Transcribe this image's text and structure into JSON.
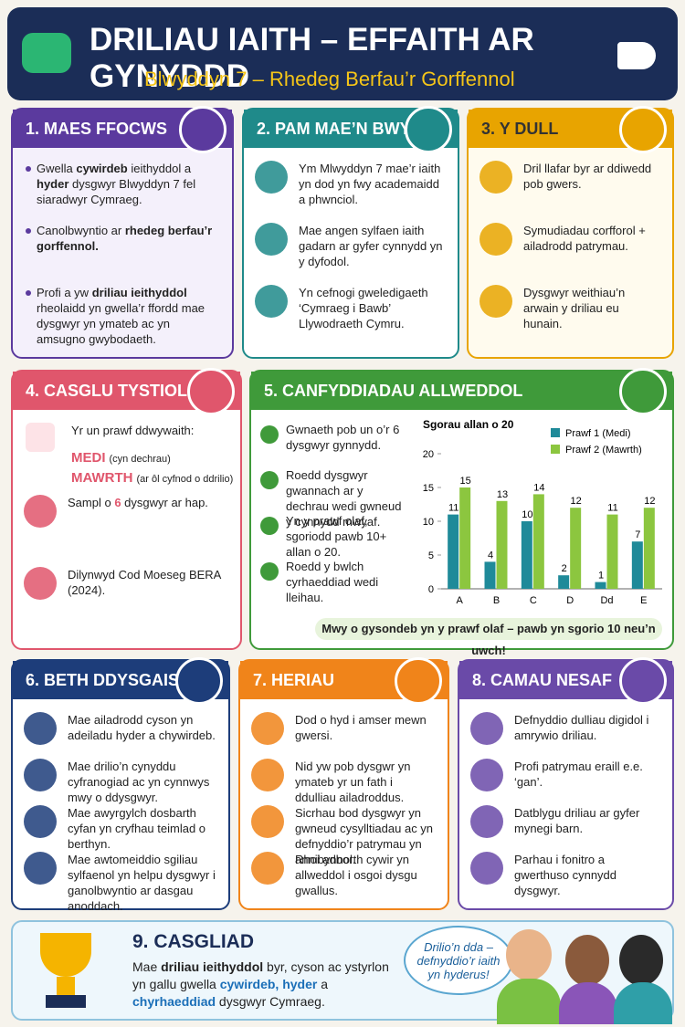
{
  "header": {
    "title": "DRILIAU IAITH – EFFAITH AR GYNYDDD",
    "subtitle": "Blwyddyn 7 – Rhedeg Berfau’r Gorffennol"
  },
  "panels": [
    {
      "title": "1. MAES FFOCWS",
      "items": [
        [
          {
            "t": "Gwella "
          },
          {
            "b": "cywirdeb"
          },
          {
            "t": " ieithyddol a "
          },
          {
            "b": "hyder"
          },
          {
            "t": " dysgwyr Blwyddyn 7 fel siaradwyr Cymraeg."
          }
        ],
        [
          {
            "t": "Canolbwyntio ar "
          },
          {
            "b": "rhedeg berfau’r gorffennol."
          }
        ],
        [
          {
            "t": "Profi a yw "
          },
          {
            "b": "driliau ieithyddol"
          },
          {
            "t": " rheolaidd yn gwella’r ffordd mae dysgwyr yn ymateb ac yn amsugno gwybodaeth."
          }
        ]
      ]
    },
    {
      "title": "2. PAM MAE’N BWYSIG?",
      "items": [
        "Ym Mlwyddyn 7 mae’r iaith yn dod yn fwy academaidd a phwnciol.",
        "Mae angen sylfaen iaith gadarn ar gyfer cynnydd yn y dyfodol.",
        "Yn cefnogi gweledigaeth ‘Cymraeg i Bawb’ Llywodraeth Cymru."
      ]
    },
    {
      "title": "3. Y DULL",
      "items": [
        "Dril llafar byr ar ddiwedd pob gwers.",
        "Symudiadau corfforol + ailadrodd patrymau.",
        "Dysgwyr weithiau’n arwain y driliau eu hunain."
      ]
    },
    {
      "title": "4. CASGLU TYSTIOLAETH",
      "intro": "Yr un prawf ddwywaith:",
      "steps": [
        {
          "label": "MEDI",
          "note": "(cyn dechrau)"
        },
        {
          "label": "MAWRTH",
          "note": "(ar ôl cyfnod o ddrilio)"
        }
      ],
      "items": [
        [
          {
            "t": "Sampl o "
          },
          {
            "h": "6"
          },
          {
            "t": " dysgwyr ar hap."
          }
        ],
        "Dilynwyd Cod Moeseg BERA (2024)."
      ]
    },
    {
      "title": "5. CANFYDDIADAU ALLWEDDOL",
      "items": [
        "Gwnaeth pob un o’r 6 dysgwyr gynnydd.",
        "Roedd dysgwyr gwannach ar y dechrau wedi gwneud y cynnydd mwyaf.",
        "Yn y prawf olaf, sgoriodd pawb 10+ allan o 20.",
        "Roedd y bwlch cyrhaeddiad wedi lleihau."
      ],
      "chart": {
        "type": "bar",
        "title": "Sgorau allan o 20",
        "categories": [
          "A",
          "B",
          "C",
          "D",
          "Dd",
          "E"
        ],
        "series": [
          {
            "name": "Prawf 1 (Medi)",
            "color": "#1f8a99",
            "values": [
              11,
              4,
              10,
              2,
              1,
              7
            ]
          },
          {
            "name": "Prawf 2 (Mawrth)",
            "color": "#8cc63f",
            "values": [
              15,
              13,
              14,
              12,
              11,
              12
            ]
          }
        ],
        "ylim": [
          0,
          20
        ],
        "yticks": [
          0,
          5,
          10,
          15,
          20
        ]
      },
      "banner": "Mwy o gysondeb yn y prawf olaf – pawb yn sgorio 10 neu’n uwch!"
    },
    {
      "title": "6. BETH DDYSGAIS?",
      "items": [
        "Mae ailadrodd cyson yn adeiladu hyder a chywirdeb.",
        "Mae drilio’n cynyddu cyfranogiad ac yn cynnwys mwy o ddysgwyr.",
        "Mae awyrgylch dosbarth cyfan yn cryfhau teimlad o berthyn.",
        "Mae awtomeiddio sgiliau sylfaenol yn helpu dysgwyr i ganolbwyntio ar dasgau anoddach."
      ]
    },
    {
      "title": "7. HERIAU",
      "items": [
        "Dod o hyd i amser mewn gwersi.",
        "Nid yw pob dysgwr yn ymateb yr un fath i ddulliau ailadroddus.",
        "Sicrhau bod dysgwyr yn gwneud cysylltiadau ac yn defnyddio’r patrymau yn annibynnol.",
        "Rhoi adborth cywir yn allweddol i osgoi dysgu gwallus."
      ]
    },
    {
      "title": "8. CAMAU NESAF",
      "items": [
        "Defnyddio dulliau digidol i amrywio driliau.",
        "Profi patrymau eraill e.e. ‘gan’.",
        "Datblygu driliau ar gyfer mynegi barn.",
        "Parhau i fonitro a gwerthuso cynnydd dysgwyr."
      ]
    }
  ],
  "conclusion": {
    "title": "9. CASGLIAD",
    "text": [
      {
        "t": "Mae "
      },
      {
        "b": "driliau ieithyddol"
      },
      {
        "t": " byr, cyson ac ystyrlon yn gallu gwella "
      },
      {
        "h": "cywirdeb, hyder"
      },
      {
        "t": " a "
      },
      {
        "h": "chyrhaeddiad"
      },
      {
        "t": " dysgwyr Cymraeg."
      }
    ],
    "bubble": "Drilio’n dda – defnyddio’r iaith yn hyderus!"
  }
}
